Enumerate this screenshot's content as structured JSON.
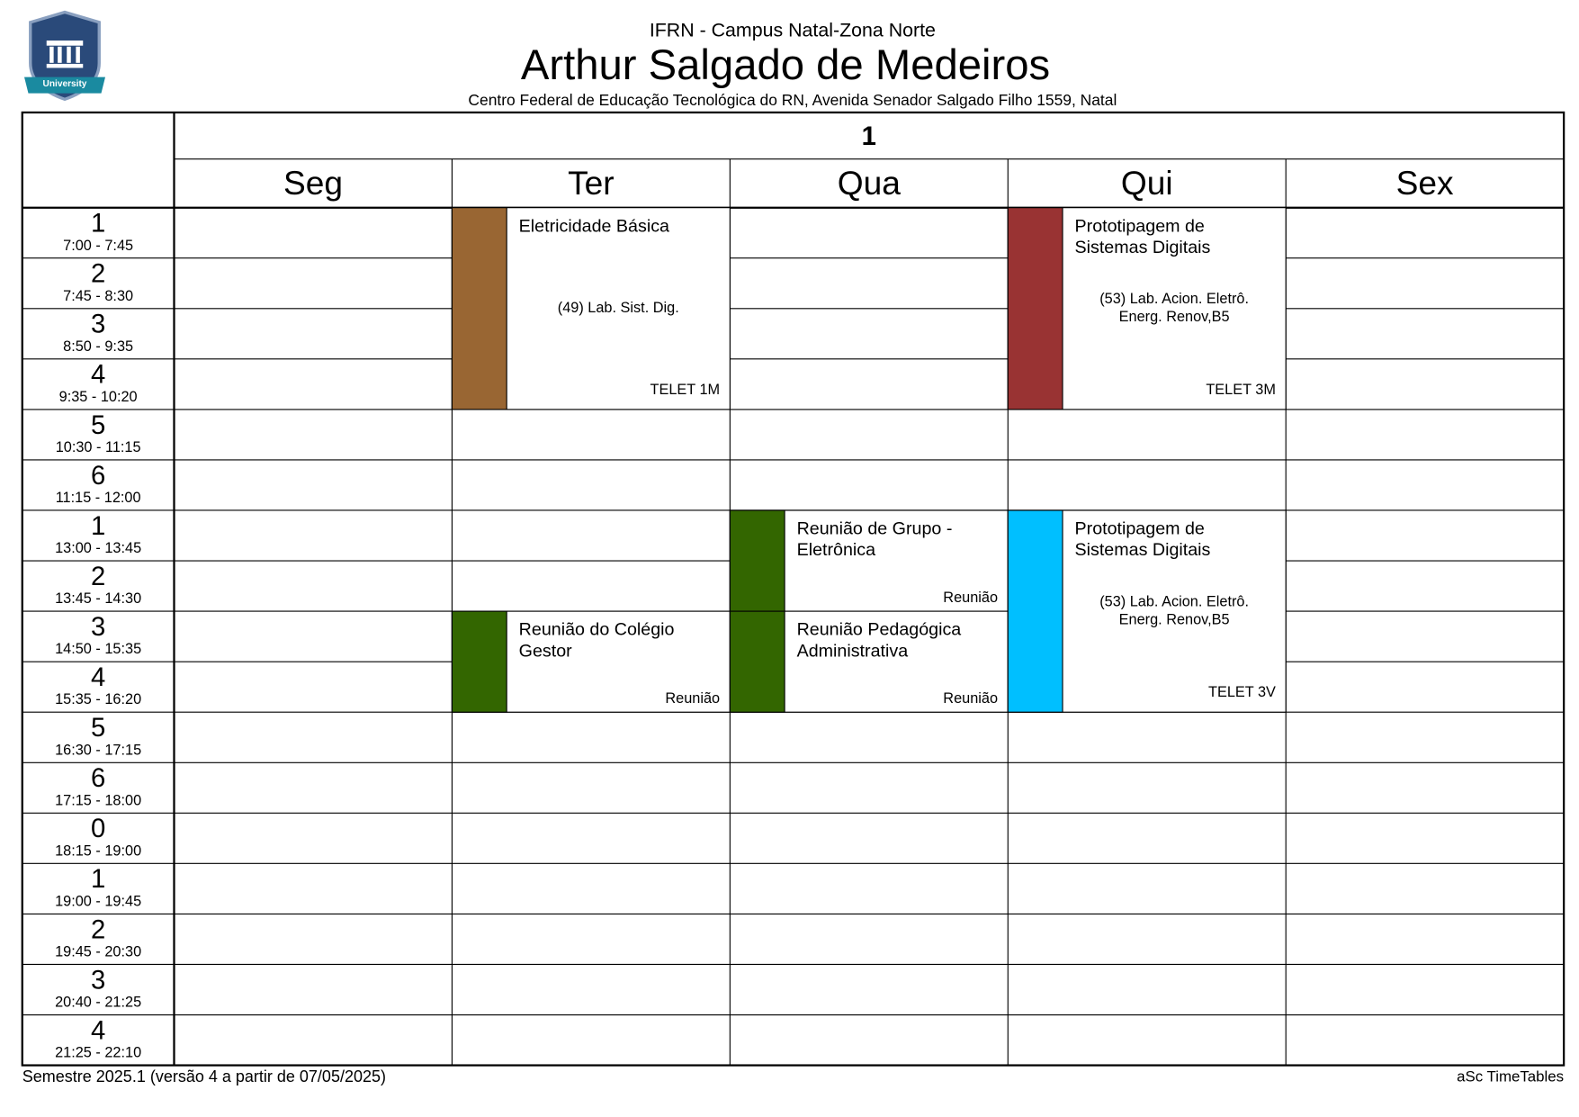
{
  "header": {
    "logo_text": "University",
    "institution": "IFRN - Campus Natal-Zona Norte",
    "name": "Arthur Salgado de Medeiros",
    "address": "Centro Federal de Educação Tecnológica do RN, Avenida Senador Salgado Filho 1559, Natal"
  },
  "table": {
    "week": "1",
    "days": [
      "Seg",
      "Ter",
      "Qua",
      "Qui",
      "Sex"
    ],
    "periods": [
      {
        "number": "1",
        "time": "7:00 - 7:45"
      },
      {
        "number": "2",
        "time": "7:45 - 8:30"
      },
      {
        "number": "3",
        "time": "8:50 - 9:35"
      },
      {
        "number": "4",
        "time": "9:35 - 10:20"
      },
      {
        "number": "5",
        "time": "10:30 - 11:15"
      },
      {
        "number": "6",
        "time": "11:15 - 12:00"
      },
      {
        "number": "1",
        "time": "13:00 - 13:45"
      },
      {
        "number": "2",
        "time": "13:45 - 14:30"
      },
      {
        "number": "3",
        "time": "14:50 - 15:35"
      },
      {
        "number": "4",
        "time": "15:35 - 16:20"
      },
      {
        "number": "5",
        "time": "16:30 - 17:15"
      },
      {
        "number": "6",
        "time": "17:15 - 18:00"
      },
      {
        "number": "0",
        "time": "18:15 - 19:00"
      },
      {
        "number": "1",
        "time": "19:00 - 19:45"
      },
      {
        "number": "2",
        "time": "19:45 - 20:30"
      },
      {
        "number": "3",
        "time": "20:40 - 21:25"
      },
      {
        "number": "4",
        "time": "21:25 - 22:10"
      }
    ],
    "lessons": [
      {
        "subject": [
          "Eletricidade Básica"
        ],
        "room": [
          "(49) Lab. Sist. Dig."
        ],
        "group": "TELET 1M",
        "color": "#996633"
      },
      {
        "subject": [
          "Prototipagem de",
          "Sistemas Digitais"
        ],
        "room": [
          "(53) Lab. Acion. Eletrô.",
          "Energ. Renov,B5"
        ],
        "group": "TELET 3M",
        "color": "#993333"
      },
      {
        "subject": [
          "Reunião de Grupo -",
          "Eletrônica"
        ],
        "group": "Reunião",
        "color": "#336600"
      },
      {
        "subject": [
          "Reunião do Colégio",
          "Gestor"
        ],
        "group": "Reunião",
        "color": "#336600"
      },
      {
        "subject": [
          "Reunião Pedagógica",
          "Administrativa"
        ],
        "group": "Reunião",
        "color": "#336600"
      },
      {
        "subject": [
          "Prototipagem de",
          "Sistemas Digitais"
        ],
        "room": [
          "(53) Lab. Acion. Eletrô.",
          "Energ. Renov,B5"
        ],
        "group": "TELET 3V",
        "color": "#00bfff"
      }
    ]
  },
  "footer": {
    "left": "Semestre 2025.1 (versão 4 a partir de 07/05/2025)",
    "right": "aSc TimeTables"
  }
}
